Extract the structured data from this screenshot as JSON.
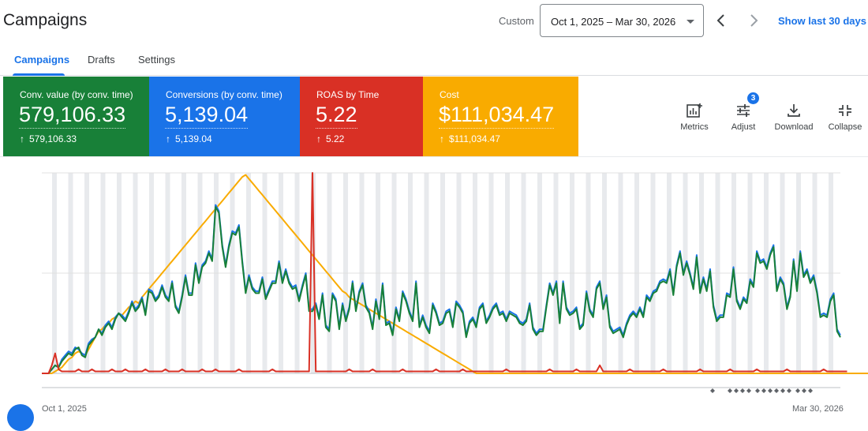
{
  "header": {
    "title": "Campaigns",
    "date_label": "Custom",
    "date_range": "Oct 1, 2025 – Mar 30, 2026",
    "quick_link": "Show last 30 days",
    "icons": {
      "prev": "chevron-left-icon",
      "next": "chevron-right-icon",
      "dropdown": "caret-down-icon"
    }
  },
  "tabs": [
    {
      "label": "Campaigns",
      "active": true
    },
    {
      "label": "Drafts",
      "active": false
    },
    {
      "label": "Settings",
      "active": false
    }
  ],
  "metrics": [
    {
      "label": "Conv. value (by conv. time)",
      "value": "579,106.33",
      "delta": "579,106.33",
      "color": "#188038"
    },
    {
      "label": "Conversions (by conv. time)",
      "value": "5,139.04",
      "delta": "5,139.04",
      "color": "#1a73e8"
    },
    {
      "label": "ROAS by Time",
      "value": "5.22",
      "delta": "5.22",
      "color": "#d93025"
    },
    {
      "label": "Cost",
      "value": "$111,034.47",
      "delta": "$111,034.47",
      "color": "#f9ab00"
    }
  ],
  "tools": [
    {
      "label": "Metrics",
      "icon": "metrics-chart-icon"
    },
    {
      "label": "Adjust",
      "icon": "tune-sliders-icon",
      "badge": "3"
    },
    {
      "label": "Download",
      "icon": "download-icon"
    },
    {
      "label": "Collapse",
      "icon": "collapse-icon"
    }
  ],
  "chart_data": {
    "type": "line",
    "x_start": "Oct 1, 2025",
    "x_end": "Mar 30, 2026",
    "x_ticks": [
      "Oct 1, 2025",
      "Mar 30, 2026"
    ],
    "y_scale": "relative",
    "grid": true,
    "series": [
      {
        "name": "Conv. value (by conv. time)",
        "color": "#188038",
        "values": [
          0,
          0,
          0,
          2,
          4,
          3,
          6,
          8,
          10,
          9,
          12,
          13,
          9,
          8,
          14,
          16,
          18,
          22,
          19,
          23,
          25,
          22,
          27,
          30,
          28,
          26,
          30,
          35,
          31,
          33,
          37,
          29,
          41,
          40,
          36,
          38,
          43,
          38,
          36,
          45,
          33,
          30,
          38,
          48,
          39,
          39,
          54,
          45,
          53,
          55,
          60,
          56,
          83,
          80,
          63,
          53,
          63,
          70,
          69,
          73,
          55,
          40,
          48,
          42,
          40,
          40,
          47,
          37,
          41,
          45,
          45,
          55,
          45,
          51,
          45,
          42,
          43,
          36,
          43,
          49,
          31,
          31,
          34,
          27,
          39,
          23,
          21,
          39,
          36,
          22,
          34,
          26,
          32,
          45,
          31,
          40,
          44,
          33,
          30,
          22,
          36,
          27,
          44,
          24,
          25,
          19,
          32,
          26,
          40,
          36,
          30,
          26,
          45,
          23,
          28,
          23,
          20,
          34,
          30,
          24,
          25,
          30,
          31,
          23,
          35,
          33,
          30,
          18,
          25,
          27,
          23,
          32,
          34,
          25,
          28,
          32,
          34,
          29,
          30,
          26,
          30,
          29,
          28,
          25,
          24,
          26,
          34,
          22,
          19,
          21,
          21,
          33,
          44,
          39,
          45,
          25,
          45,
          32,
          29,
          30,
          32,
          22,
          24,
          40,
          31,
          28,
          42,
          45,
          32,
          38,
          23,
          20,
          21,
          22,
          18,
          24,
          28,
          30,
          28,
          32,
          28,
          38,
          36,
          40,
          41,
          45,
          46,
          45,
          51,
          39,
          53,
          60,
          49,
          55,
          49,
          42,
          58,
          40,
          47,
          41,
          51,
          33,
          26,
          28,
          28,
          39,
          38,
          52,
          36,
          32,
          37,
          35,
          46,
          43,
          60,
          55,
          56,
          52,
          59,
          63,
          41,
          47,
          44,
          32,
          38,
          56,
          41,
          60,
          48,
          51,
          45,
          48,
          40,
          28,
          29,
          28,
          36,
          39,
          21,
          18
        ]
      },
      {
        "name": "Conversions (by conv. time)",
        "color": "#1a73e8",
        "values": [
          0,
          0,
          0,
          2,
          4,
          3,
          7,
          9,
          11,
          10,
          13,
          12,
          10,
          9,
          15,
          17,
          18,
          22,
          20,
          24,
          26,
          23,
          28,
          30,
          29,
          27,
          31,
          36,
          32,
          34,
          38,
          30,
          42,
          41,
          37,
          39,
          44,
          39,
          37,
          46,
          34,
          31,
          39,
          49,
          40,
          40,
          55,
          46,
          54,
          56,
          61,
          57,
          84,
          81,
          64,
          54,
          64,
          71,
          70,
          74,
          56,
          41,
          49,
          43,
          41,
          41,
          48,
          38,
          42,
          46,
          46,
          56,
          46,
          52,
          46,
          43,
          44,
          37,
          44,
          50,
          32,
          32,
          35,
          28,
          40,
          24,
          22,
          40,
          37,
          23,
          35,
          27,
          33,
          46,
          32,
          41,
          45,
          34,
          31,
          23,
          37,
          28,
          45,
          25,
          26,
          20,
          33,
          27,
          41,
          37,
          31,
          27,
          46,
          24,
          29,
          24,
          21,
          35,
          31,
          25,
          26,
          31,
          32,
          24,
          36,
          34,
          31,
          19,
          26,
          28,
          24,
          33,
          35,
          26,
          29,
          33,
          35,
          30,
          31,
          27,
          31,
          30,
          29,
          26,
          25,
          27,
          35,
          23,
          20,
          22,
          22,
          34,
          45,
          40,
          46,
          26,
          46,
          33,
          30,
          31,
          33,
          23,
          25,
          41,
          32,
          29,
          43,
          46,
          33,
          39,
          24,
          21,
          22,
          23,
          19,
          25,
          29,
          31,
          29,
          33,
          29,
          39,
          37,
          41,
          42,
          46,
          47,
          46,
          52,
          40,
          54,
          61,
          50,
          56,
          50,
          43,
          59,
          41,
          48,
          42,
          52,
          34,
          27,
          29,
          29,
          40,
          39,
          53,
          37,
          33,
          38,
          36,
          47,
          44,
          61,
          56,
          57,
          53,
          60,
          64,
          42,
          48,
          45,
          33,
          39,
          57,
          42,
          61,
          49,
          52,
          46,
          49,
          41,
          29,
          30,
          29,
          37,
          40,
          22,
          19
        ]
      },
      {
        "name": "ROAS by Time",
        "color": "#d93025",
        "values": [
          0,
          0,
          0,
          4,
          10,
          2,
          1,
          1,
          1,
          1,
          1,
          2,
          1,
          1,
          1,
          2,
          1,
          1,
          1,
          1,
          1,
          2,
          1,
          1,
          1,
          2,
          1,
          1,
          1,
          1,
          1,
          2,
          1,
          1,
          1,
          1,
          1,
          2,
          1,
          1,
          1,
          1,
          2,
          1,
          1,
          1,
          1,
          1,
          2,
          1,
          1,
          1,
          2,
          1,
          1,
          1,
          1,
          1,
          1,
          2,
          1,
          1,
          1,
          1,
          1,
          1,
          1,
          1,
          1,
          2,
          1,
          1,
          1,
          1,
          1,
          1,
          1,
          1,
          1,
          1,
          1,
          100,
          1,
          1,
          1,
          1,
          1,
          1,
          1,
          1,
          1,
          1,
          2,
          1,
          1,
          1,
          1,
          1,
          1,
          2,
          1,
          1,
          1,
          1,
          1,
          1,
          1,
          1,
          2,
          1,
          1,
          1,
          1,
          1,
          1,
          1,
          1,
          1,
          2,
          1,
          1,
          1,
          1,
          1,
          1,
          1,
          2,
          1,
          1,
          1,
          1,
          1,
          1,
          1,
          1,
          1,
          1,
          1,
          1,
          2,
          1,
          1,
          1,
          1,
          1,
          1,
          1,
          1,
          1,
          1,
          1,
          1,
          2,
          1,
          1,
          1,
          1,
          1,
          1,
          1,
          2,
          1,
          1,
          1,
          1,
          1,
          1,
          4,
          1,
          1,
          1,
          1,
          1,
          1,
          1,
          1,
          2,
          1,
          1,
          1,
          1,
          1,
          1,
          1,
          1,
          1,
          2,
          1,
          1,
          1,
          1,
          1,
          1,
          1,
          1,
          1,
          1,
          2,
          1,
          1,
          1,
          1,
          1,
          1,
          1,
          1,
          2,
          1,
          1,
          1,
          1,
          1,
          1,
          1,
          2,
          1,
          1,
          1,
          1,
          1,
          1,
          1,
          1,
          2,
          1,
          1,
          1,
          1,
          1,
          1,
          1,
          1,
          1,
          1,
          2,
          1,
          1,
          1,
          1,
          1,
          1,
          1
        ]
      },
      {
        "name": "Cost",
        "color": "#f9ab00",
        "values": [
          0,
          0,
          0,
          0,
          1,
          2,
          3,
          5,
          7,
          8,
          10,
          11,
          10,
          9,
          12,
          15,
          18,
          21,
          22,
          24,
          25,
          27,
          28,
          30,
          29,
          31,
          33,
          34,
          36,
          35,
          38,
          40,
          42,
          44,
          46,
          48,
          50,
          52,
          54,
          56,
          58,
          60,
          62,
          64,
          66,
          68,
          70,
          72,
          74,
          76,
          78,
          80,
          82,
          84,
          86,
          88,
          90,
          92,
          94,
          96,
          98,
          99,
          97,
          95,
          93,
          91,
          89,
          87,
          85,
          83,
          81,
          79,
          77,
          75,
          73,
          71,
          69,
          67,
          65,
          63,
          61,
          59,
          57,
          55,
          53,
          51,
          49,
          47,
          45,
          43,
          41,
          40,
          38,
          37,
          36,
          35,
          34,
          33,
          32,
          31,
          30,
          29,
          28,
          27,
          26,
          25,
          24,
          23,
          22,
          21,
          20,
          19,
          18,
          17,
          16,
          15,
          14,
          13,
          12,
          11,
          10,
          9,
          8,
          7,
          6,
          5,
          4,
          3,
          2,
          1,
          0,
          0,
          0,
          0,
          0,
          0,
          0,
          0,
          0,
          0,
          0,
          0,
          0,
          0,
          0,
          0,
          0,
          0,
          0,
          0,
          0,
          0,
          0,
          0,
          0,
          0,
          0,
          0,
          0,
          0,
          0,
          0,
          0,
          0,
          0,
          0,
          0,
          0,
          0,
          0,
          0,
          0,
          0,
          0,
          0,
          0,
          0,
          0,
          0,
          0,
          0,
          0,
          0,
          0,
          0,
          0,
          0,
          0,
          0,
          0,
          0,
          0,
          0,
          0,
          0,
          0,
          0,
          0,
          0,
          0,
          0,
          0,
          0,
          0,
          0,
          0,
          0,
          0,
          0,
          0,
          0,
          0,
          0,
          0,
          0,
          0,
          0,
          0,
          0,
          0,
          0,
          0,
          0,
          0,
          0,
          0,
          0,
          0,
          0,
          0,
          0,
          0,
          0,
          0,
          0,
          0,
          0,
          0,
          0,
          0,
          0,
          0,
          0,
          0,
          0,
          0,
          0,
          0,
          0,
          0,
          0,
          0,
          0,
          0,
          0,
          0,
          0,
          0,
          0,
          0,
          0,
          0,
          0,
          0,
          0
        ]
      }
    ]
  }
}
